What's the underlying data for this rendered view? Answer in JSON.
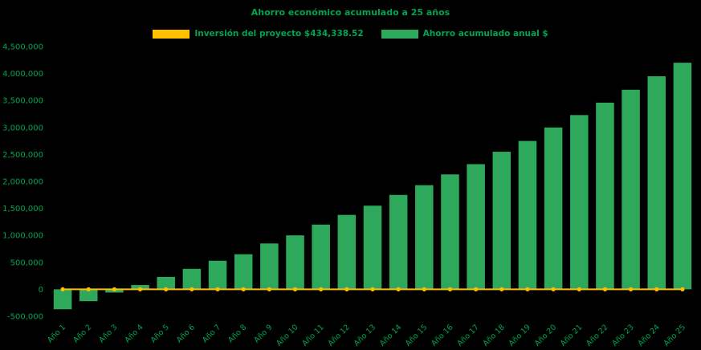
{
  "title": "Ahorro económico acumulado a 25 años",
  "legend": {
    "items": [
      {
        "label": "Inversión del proyecto $434,338.52",
        "color": "#FFC000"
      },
      {
        "label": "Ahorro acumulado anual $",
        "color": "#2EA95C"
      }
    ]
  },
  "colors": {
    "background": "#000000",
    "label_text": "#00A551",
    "bar": "#2EA95C",
    "line": "#FFC000"
  },
  "chart_data": {
    "type": "bar",
    "title": "Ahorro económico acumulado a 25 años",
    "xlabel": "",
    "ylabel": "",
    "ylim": [
      -500000,
      4500000
    ],
    "ytick_step": 500000,
    "grid": false,
    "legend_position": "top",
    "categories": [
      "Año 1",
      "Año 2",
      "Año 3",
      "Año 4",
      "Año 5",
      "Año 6",
      "Año 7",
      "Año 8",
      "Año 9",
      "Año 10",
      "Año 11",
      "Año 12",
      "Año 13",
      "Año 14",
      "Año 15",
      "Año 16",
      "Año 17",
      "Año 18",
      "Año 19",
      "Año 20",
      "Año 21",
      "Año 22",
      "Año 23",
      "Año 24",
      "Año 25"
    ],
    "series": [
      {
        "name": "Ahorro acumulado anual $",
        "type": "bar",
        "color": "#2EA95C",
        "values": [
          -370000,
          -220000,
          -60000,
          80000,
          230000,
          380000,
          530000,
          650000,
          850000,
          1000000,
          1200000,
          1380000,
          1550000,
          1750000,
          1930000,
          2130000,
          2320000,
          2550000,
          2750000,
          3000000,
          3230000,
          3460000,
          3700000,
          3950000,
          4200000
        ]
      },
      {
        "name": "Inversión del proyecto $434,338.52",
        "type": "line",
        "color": "#FFC000",
        "values": [
          0,
          0,
          0,
          0,
          0,
          0,
          0,
          0,
          0,
          0,
          0,
          0,
          0,
          0,
          0,
          0,
          0,
          0,
          0,
          0,
          0,
          0,
          0,
          0,
          0
        ]
      }
    ]
  }
}
